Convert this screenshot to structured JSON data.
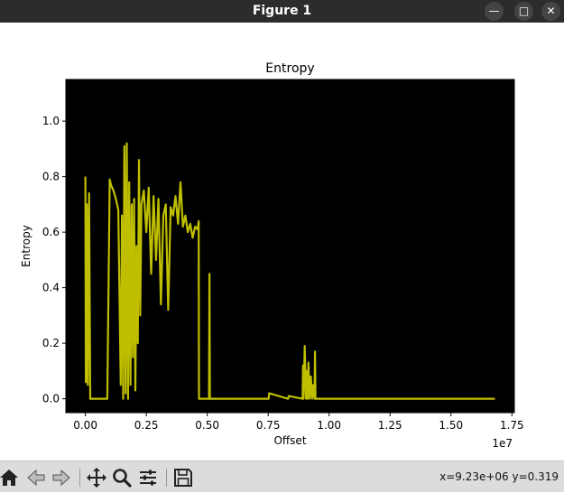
{
  "window": {
    "title": "Figure 1"
  },
  "toolbar": {
    "coords": "x=9.23e+06 y=0.319"
  },
  "colors": {
    "axes_bg": "#000000",
    "line": "#bfbf00",
    "figure_bg": "#ffffff"
  },
  "icons": [
    "home-icon",
    "back-icon",
    "forward-icon",
    "pan-icon",
    "zoom-icon",
    "configure-subplots-icon",
    "save-icon"
  ],
  "chart_data": {
    "type": "line",
    "title": "Entropy",
    "xlabel": "Offset",
    "ylabel": "Entropy",
    "x_offset_text": "1e7",
    "xlim": [
      -800000,
      17600000
    ],
    "ylim": [
      -0.05,
      1.15
    ],
    "xticks": [
      0,
      2500000,
      5000000,
      7500000,
      10000000,
      12500000,
      15000000,
      17500000
    ],
    "xtick_labels": [
      "0.00",
      "0.25",
      "0.50",
      "0.75",
      "1.00",
      "1.25",
      "1.50",
      "1.75"
    ],
    "yticks": [
      0.0,
      0.2,
      0.4,
      0.6,
      0.8,
      1.0
    ],
    "ytick_labels": [
      "0.0",
      "0.2",
      "0.4",
      "0.6",
      "0.8",
      "1.0"
    ],
    "grid": false,
    "series": [
      {
        "x": [
          0,
          20000,
          60000,
          100000,
          150000,
          200000,
          280000,
          350000,
          500000,
          800000,
          900000,
          1000000,
          1050000,
          1150000,
          1250000,
          1350000,
          1450000,
          1500000,
          1550000,
          1600000,
          1650000,
          1700000,
          1750000,
          1800000,
          1850000,
          1900000,
          1950000,
          2000000,
          2050000,
          2100000,
          2150000,
          2200000,
          2250000,
          2300000,
          2400000,
          2500000,
          2600000,
          2700000,
          2800000,
          2900000,
          3000000,
          3100000,
          3200000,
          3300000,
          3400000,
          3500000,
          3600000,
          3700000,
          3800000,
          3900000,
          4000000,
          4100000,
          4200000,
          4300000,
          4400000,
          4500000,
          4600000,
          4650000,
          4660000,
          5000000,
          5050000,
          5070000,
          5090000,
          5110000,
          7500000,
          7520000,
          7540000,
          8300000,
          8320000,
          8340000,
          8900000,
          8910000,
          8930000,
          8950000,
          9000000,
          9050000,
          9100000,
          9120000,
          9150000,
          9200000,
          9250000,
          9300000,
          9350000,
          9400000,
          9420000,
          9440000,
          16800000
        ],
        "y": [
          0.8,
          0.06,
          0.7,
          0.05,
          0.74,
          0.0,
          0.0,
          0.0,
          0.0,
          0.0,
          0.0,
          0.79,
          0.77,
          0.75,
          0.72,
          0.68,
          0.05,
          0.66,
          0.0,
          0.91,
          0.02,
          0.92,
          0.0,
          0.78,
          0.05,
          0.7,
          0.15,
          0.72,
          0.03,
          0.55,
          0.2,
          0.86,
          0.3,
          0.7,
          0.75,
          0.6,
          0.76,
          0.45,
          0.73,
          0.5,
          0.72,
          0.34,
          0.66,
          0.7,
          0.32,
          0.69,
          0.66,
          0.73,
          0.63,
          0.78,
          0.62,
          0.66,
          0.6,
          0.63,
          0.58,
          0.62,
          0.61,
          0.64,
          0.0,
          0.0,
          0.0,
          0.0,
          0.45,
          0.0,
          0.0,
          0.0,
          0.02,
          0.0,
          0.0,
          0.01,
          0.0,
          0.0,
          0.12,
          0.0,
          0.19,
          0.0,
          0.1,
          0.0,
          0.13,
          0.0,
          0.08,
          0.0,
          0.05,
          0.0,
          0.17,
          0.0,
          0.0
        ]
      }
    ]
  }
}
